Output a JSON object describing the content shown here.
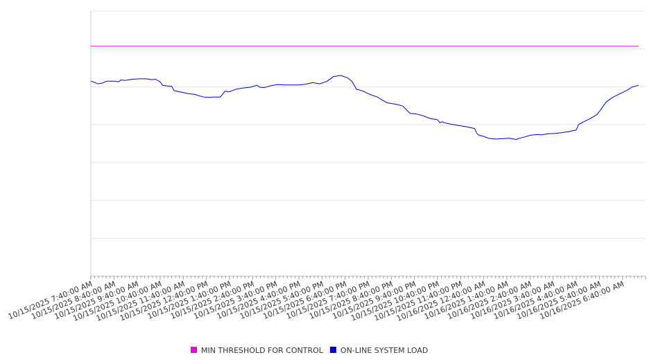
{
  "chart_data": {
    "type": "line",
    "title": "",
    "xlabel": "",
    "ylabel": "",
    "ylim": [
      0,
      7
    ],
    "grid": true,
    "legend_position": "bottom",
    "x_tick_labels": [
      "10/15/2025 7:40:00 AM",
      "10/15/2025 8:40:00 AM",
      "10/15/2025 9:40:00 AM",
      "10/15/2025 10:40:00 AM",
      "10/15/2025 11:40:00 AM",
      "10/15/2025 12:40:00 PM",
      "10/15/2025 1:40:00 PM",
      "10/15/2025 2:40:00 PM",
      "10/15/2025 3:40:00 PM",
      "10/15/2025 4:40:00 PM",
      "10/15/2025 5:40:00 PM",
      "10/15/2025 6:40:00 PM",
      "10/15/2025 7:40:00 PM",
      "10/15/2025 8:40:00 PM",
      "10/15/2025 9:40:00 PM",
      "10/15/2025 10:40:00 PM",
      "10/15/2025 11:40:00 PM",
      "10/16/2025 12:40:00 AM",
      "10/16/2025 1:40:00 AM",
      "10/16/2025 2:40:00 AM",
      "10/16/2025 3:40:00 AM",
      "10/16/2025 4:40:00 AM",
      "10/16/2025 5:40:00 AM",
      "10/16/2025 6:40:00 AM"
    ],
    "series": [
      {
        "name": "MIN THRESHOLD FOR CONTROL",
        "color": "#e600e6",
        "x": [
          0,
          23.7
        ],
        "values": [
          6.07,
          6.07
        ]
      },
      {
        "name": "ON-LINE SYSTEM LOAD",
        "color": "#0000cc",
        "x": [
          0,
          0.15,
          0.3,
          0.5,
          0.7,
          1.0,
          1.2,
          1.3,
          1.5,
          1.8,
          2.1,
          2.4,
          2.6,
          2.7,
          2.8,
          3.0,
          3.1,
          3.3,
          3.5,
          3.6,
          3.9,
          4.2,
          4.5,
          4.7,
          4.9,
          5.2,
          5.3,
          5.4,
          5.6,
          5.8,
          6.0,
          6.3,
          6.6,
          6.9,
          7.2,
          7.3,
          7.5,
          7.8,
          8.1,
          8.4,
          8.7,
          9.0,
          9.3,
          9.6,
          9.9,
          10.2,
          10.5,
          10.8,
          11.1,
          11.3,
          11.5,
          11.6,
          11.8,
          12.0,
          12.2,
          12.4,
          12.55,
          12.7,
          12.8,
          13.0,
          13.2,
          13.5,
          13.8,
          14.1,
          14.4,
          14.7,
          15.0,
          15.1,
          15.2,
          15.3,
          15.6,
          15.9,
          16.2,
          16.6,
          16.7,
          16.8,
          17.0,
          17.2,
          17.5,
          17.8,
          18.1,
          18.4,
          18.6,
          18.8,
          19.0,
          19.3,
          19.5,
          19.8,
          20.1,
          20.4,
          20.7,
          21.0,
          21.1,
          21.3,
          21.6,
          21.9,
          22.1,
          22.3,
          22.6,
          22.9,
          23.2,
          23.4,
          23.7
        ],
        "values": [
          5.15,
          5.12,
          5.08,
          5.1,
          5.15,
          5.15,
          5.13,
          5.18,
          5.17,
          5.2,
          5.21,
          5.21,
          5.19,
          5.19,
          5.2,
          5.13,
          5.04,
          5.02,
          5.01,
          4.9,
          4.86,
          4.82,
          4.8,
          4.76,
          4.73,
          4.72,
          4.73,
          4.73,
          4.73,
          4.88,
          4.87,
          4.94,
          4.97,
          4.99,
          5.04,
          4.99,
          4.98,
          5.03,
          5.06,
          5.05,
          5.05,
          5.05,
          5.07,
          5.11,
          5.08,
          5.14,
          5.27,
          5.3,
          5.24,
          5.14,
          4.93,
          4.92,
          4.88,
          4.82,
          4.77,
          4.73,
          4.67,
          4.62,
          4.58,
          4.56,
          4.54,
          4.49,
          4.3,
          4.28,
          4.23,
          4.16,
          4.13,
          4.05,
          4.08,
          4.05,
          4.01,
          3.98,
          3.95,
          3.9,
          3.77,
          3.72,
          3.69,
          3.64,
          3.62,
          3.63,
          3.64,
          3.61,
          3.65,
          3.68,
          3.72,
          3.74,
          3.73,
          3.76,
          3.77,
          3.79,
          3.82,
          3.86,
          4.0,
          4.07,
          4.16,
          4.27,
          4.43,
          4.6,
          4.73,
          4.82,
          4.91,
          4.99,
          5.04
        ]
      }
    ]
  }
}
